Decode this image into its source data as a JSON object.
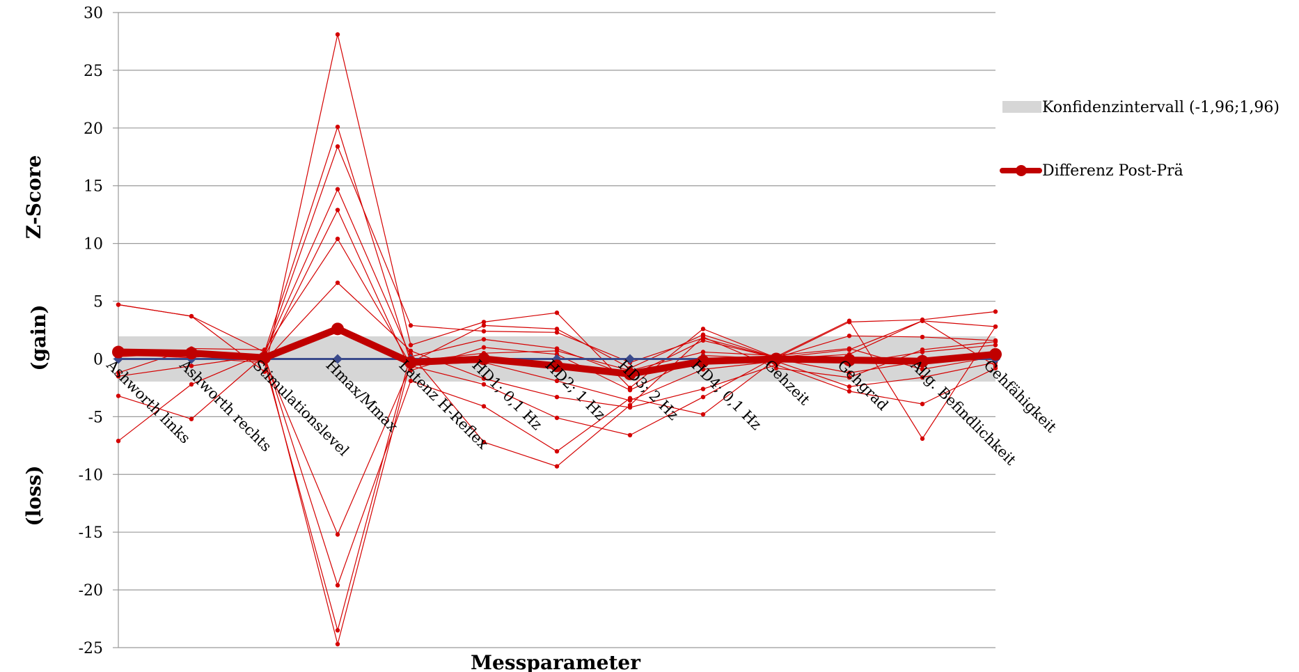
{
  "chart_data": {
    "type": "line",
    "title": "",
    "xlabel": "Messparameter",
    "ylabel": "Z-Score",
    "ylabel_gain": "(gain)",
    "ylabel_loss": "(loss)",
    "ylim": [
      -25,
      30
    ],
    "ytick_step": 5,
    "grid": true,
    "legend_position": "right",
    "categories": [
      "Ashworth links",
      "Ashworth rechts",
      "Stimulationslevel",
      "Hmax/Mmax",
      "Latenz H-Reflex",
      "HD1; 0,1 Hz",
      "HD2; 1 Hz",
      "HD3; 2 Hz",
      "HD4; 0,1 Hz",
      "Gehzeit",
      "Gehgrad",
      "Allg. Befindlichkeit",
      "Gehfähigkeit"
    ],
    "confidence_interval": {
      "name": "Konfidenzintervall (-1,96;1,96)",
      "lower": -1.96,
      "upper": 1.96,
      "color": "#d6d6d6"
    },
    "baseline": {
      "values": [
        0,
        0,
        0,
        0,
        0,
        0,
        0,
        0,
        0,
        0,
        0,
        0,
        0
      ],
      "color": "#3a4a8c"
    },
    "mean_series": {
      "name": "Differenz Post-Prä",
      "color": "#c00000",
      "values": [
        0.6,
        0.5,
        0.1,
        2.6,
        -0.3,
        0.0,
        -0.6,
        -1.3,
        -0.2,
        0.0,
        -0.1,
        -0.2,
        0.4
      ]
    },
    "individual_color": "#d40000",
    "series": [
      {
        "values": [
          4.7,
          3.7,
          -1.1,
          28.1,
          1.2,
          3.2,
          4.0,
          -2.5,
          2.6,
          0.1,
          3.2,
          3.4,
          4.1
        ]
      },
      {
        "values": [
          4.7,
          3.7,
          0.6,
          20.1,
          -0.3,
          2.9,
          2.6,
          -0.8,
          2.1,
          0.1,
          0.8,
          3.3,
          2.8
        ]
      },
      {
        "values": [
          -3.2,
          -5.2,
          0.3,
          18.4,
          2.9,
          2.4,
          2.3,
          -0.3,
          1.8,
          0.1,
          2.0,
          1.9,
          1.6
        ]
      },
      {
        "values": [
          -7.1,
          -2.2,
          0.5,
          14.7,
          0.2,
          1.7,
          0.9,
          -1.5,
          1.6,
          0.1,
          -0.4,
          0.6,
          1.2
        ]
      },
      {
        "values": [
          0.8,
          0.3,
          0.2,
          12.9,
          -1.0,
          1.0,
          0.4,
          -2.7,
          0.3,
          0.0,
          -1.2,
          -0.2,
          0.2
        ]
      },
      {
        "values": [
          -1.2,
          0.9,
          0.8,
          10.4,
          -0.5,
          -0.3,
          -1.9,
          -3.6,
          -0.9,
          -0.2,
          -2.4,
          -1.6,
          -0.3
        ]
      },
      {
        "values": [
          0.2,
          0.5,
          -0.2,
          6.6,
          0.7,
          -1.7,
          -3.3,
          -4.2,
          -2.6,
          -0.5,
          -2.8,
          -3.9,
          -0.8
        ]
      },
      {
        "values": [
          0.6,
          0.6,
          0.0,
          -15.2,
          -0.6,
          -2.2,
          -5.1,
          -6.6,
          -3.3,
          0.2,
          3.3,
          -6.9,
          2.8
        ]
      },
      {
        "values": [
          -1.5,
          -0.6,
          0.3,
          -19.6,
          -1.9,
          -4.1,
          -8.0,
          -3.4,
          -4.8,
          0.0,
          0.4,
          3.3,
          -0.6
        ]
      },
      {
        "values": [
          0.4,
          0.1,
          -0.3,
          -23.5,
          0.4,
          -7.2,
          -9.3,
          -4.0,
          1.9,
          -0.8,
          -1.6,
          0.8,
          1.5
        ]
      },
      {
        "values": [
          0.3,
          0.2,
          0.1,
          -24.7,
          -0.2,
          0.5,
          0.7,
          -1.0,
          0.6,
          0.3,
          0.9,
          -0.9,
          0.2
        ]
      }
    ]
  }
}
